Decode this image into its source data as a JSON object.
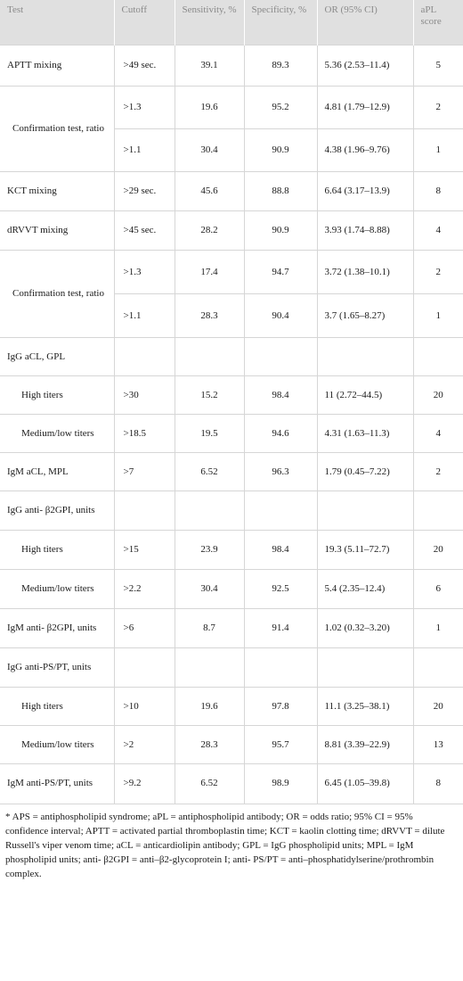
{
  "headers": {
    "test": "Test",
    "cutoff": "Cutoff",
    "sensitivity": "Sensitivity, %",
    "specificity": "Specificity, %",
    "or": "OR (95% CI)",
    "apl": "aPL score"
  },
  "rows": [
    {
      "test": "APTT mixing",
      "cutoff": ">49 sec.",
      "sens": "39.1",
      "spec": "89.3",
      "or": "5.36 (2.53–11.4)",
      "apl": "5"
    },
    {
      "test": "Confirmation test, ratio",
      "cutoff": ">1.3",
      "sens": "19.6",
      "spec": "95.2",
      "or": "4.81 (1.79–12.9)",
      "apl": "2"
    },
    {
      "cutoff": ">1.1",
      "sens": "30.4",
      "spec": "90.9",
      "or": "4.38 (1.96–9.76)",
      "apl": "1"
    },
    {
      "test": "KCT mixing",
      "cutoff": ">29 sec.",
      "sens": "45.6",
      "spec": "88.8",
      "or": "6.64 (3.17–13.9)",
      "apl": "8"
    },
    {
      "test": "dRVVT mixing",
      "cutoff": ">45 sec.",
      "sens": "28.2",
      "spec": "90.9",
      "or": "3.93 (1.74–8.88)",
      "apl": "4"
    },
    {
      "test": "Confirmation test, ratio",
      "cutoff": ">1.3",
      "sens": "17.4",
      "spec": "94.7",
      "or": "3.72 (1.38–10.1)",
      "apl": "2"
    },
    {
      "cutoff": ">1.1",
      "sens": "28.3",
      "spec": "90.4",
      "or": "3.7 (1.65–8.27)",
      "apl": "1"
    },
    {
      "test": "IgG aCL, GPL"
    },
    {
      "test": "High titers",
      "cutoff": ">30",
      "sens": "15.2",
      "spec": "98.4",
      "or": "11 (2.72–44.5)",
      "apl": "20"
    },
    {
      "test": "Medium/low titers",
      "cutoff": ">18.5",
      "sens": "19.5",
      "spec": "94.6",
      "or": "4.31 (1.63–11.3)",
      "apl": "4"
    },
    {
      "test": "IgM aCL, MPL",
      "cutoff": ">7",
      "sens": "6.52",
      "spec": "96.3",
      "or": "1.79 (0.45–7.22)",
      "apl": "2"
    },
    {
      "test": "IgG anti- β2GPI, units"
    },
    {
      "test": "High titers",
      "cutoff": ">15",
      "sens": "23.9",
      "spec": "98.4",
      "or": "19.3 (5.11–72.7)",
      "apl": "20"
    },
    {
      "test": "Medium/low titers",
      "cutoff": ">2.2",
      "sens": "30.4",
      "spec": "92.5",
      "or": "5.4 (2.35–12.4)",
      "apl": "6"
    },
    {
      "test": "IgM anti- β2GPI, units",
      "cutoff": ">6",
      "sens": "8.7",
      "spec": "91.4",
      "or": "1.02 (0.32–3.20)",
      "apl": "1"
    },
    {
      "test": "IgG anti-PS/PT, units"
    },
    {
      "test": "High titers",
      "cutoff": ">10",
      "sens": "19.6",
      "spec": "97.8",
      "or": "11.1 (3.25–38.1)",
      "apl": "20"
    },
    {
      "test": "Medium/low titers",
      "cutoff": ">2",
      "sens": "28.3",
      "spec": "95.7",
      "or": "8.81 (3.39–22.9)",
      "apl": "13"
    },
    {
      "test": "IgM anti-PS/PT, units",
      "cutoff": ">9.2",
      "sens": "6.52",
      "spec": "98.9",
      "or": "6.45 (1.05–39.8)",
      "apl": "8"
    }
  ],
  "footnote": "* APS = antiphospholipid syndrome; aPL = antiphospholipid antibody; OR = odds ratio; 95% CI = 95% confidence interval; APTT = activated partial thromboplastin time; KCT = kaolin clotting time; dRVVT = dilute Russell's viper venom time; aCL = anticardiolipin antibody; GPL = IgG phospholipid units; MPL = IgM phospholipid units; anti- β2GPI = anti–β2-glycoprotein I; anti- PS/PT = anti–phosphatidylserine/prothrombin complex."
}
